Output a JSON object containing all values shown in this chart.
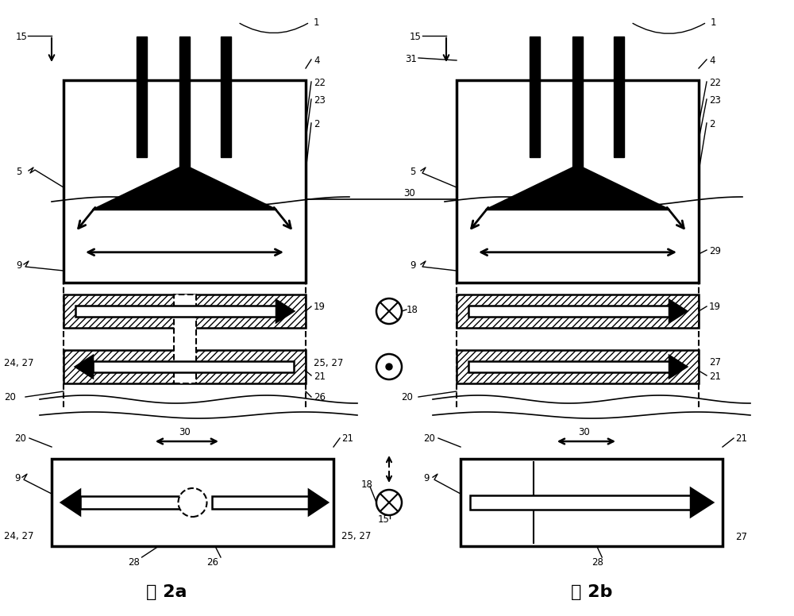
{
  "bg_color": "#ffffff",
  "fig_width": 10.0,
  "fig_height": 7.76,
  "title_2a": "图 2a",
  "title_2b": "图 2b",
  "label_fontsize": 8.5,
  "title_fontsize": 16
}
